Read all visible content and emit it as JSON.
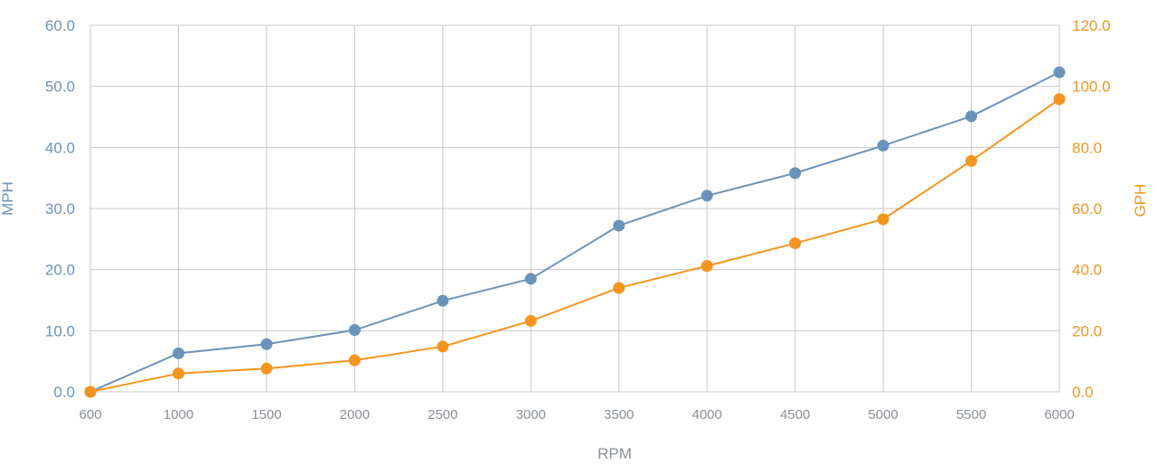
{
  "colors": {
    "mph": "#6b93ba",
    "gph": "#f3951f",
    "grid": "#c8c8c8",
    "x_tick": "#8a8f96"
  },
  "chart_data": {
    "type": "line",
    "title": "",
    "xlabel": "RPM",
    "ylabel": "MPH",
    "y2label": "GPH",
    "x": [
      "600",
      "1000",
      "1500",
      "2000",
      "2500",
      "3000",
      "3500",
      "4000",
      "4500",
      "5000",
      "5500",
      "6000"
    ],
    "ylim": [
      0,
      60
    ],
    "y2lim": [
      0,
      120
    ],
    "y_ticks": [
      "0.0",
      "10.0",
      "20.0",
      "30.0",
      "40.0",
      "50.0",
      "60.0"
    ],
    "y2_ticks": [
      "0.0",
      "20.0",
      "40.0",
      "60.0",
      "80.0",
      "100.0",
      "120.0"
    ],
    "grid": true,
    "series": [
      {
        "name": "MPH",
        "axis": "left",
        "values": [
          0.0,
          6.3,
          7.8,
          10.1,
          14.9,
          18.5,
          27.2,
          32.1,
          35.8,
          40.3,
          45.1,
          52.3
        ]
      },
      {
        "name": "GPH",
        "axis": "right",
        "values": [
          0.0,
          6.0,
          7.6,
          10.3,
          14.8,
          23.2,
          34.0,
          41.2,
          48.6,
          56.5,
          75.6,
          95.8
        ]
      }
    ]
  }
}
